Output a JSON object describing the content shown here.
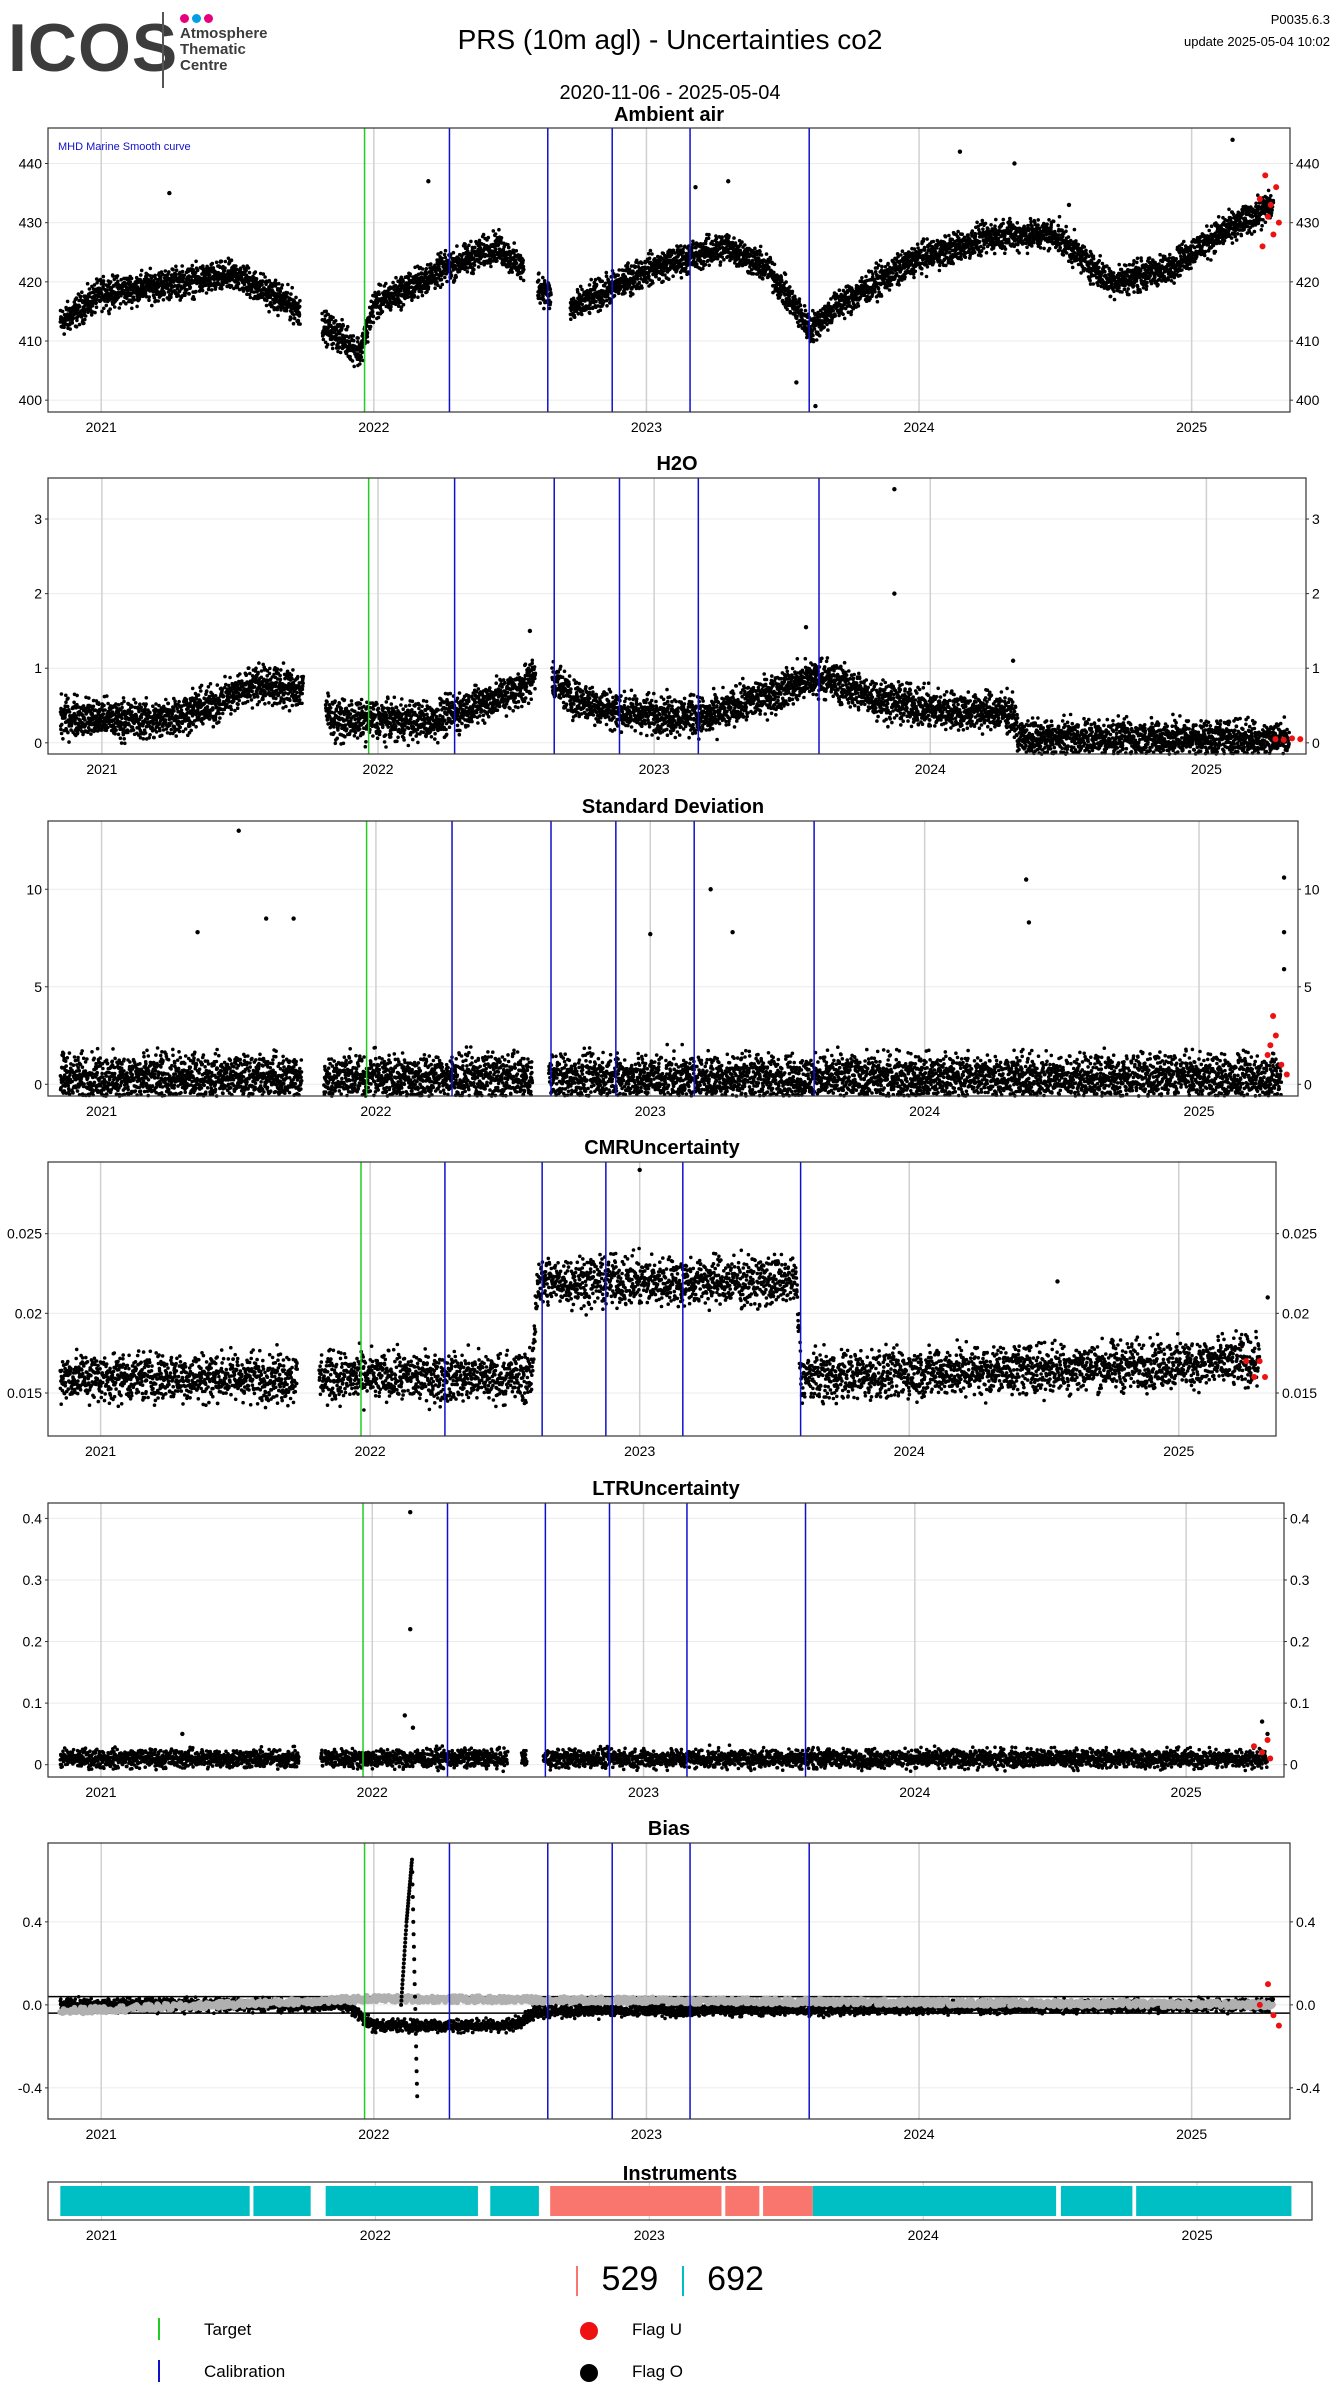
{
  "header": {
    "logo": "ICOS",
    "logo_sub": [
      "Atmosphere",
      "Thematic",
      "Centre"
    ],
    "title": "PRS  (10m agl) - Uncertainties co2",
    "date_range": "2020-11-06 - 2025-05-04",
    "version": "P0035.6.3",
    "update": "update  2025-05-04 10:02"
  },
  "colors": {
    "target": "#22cc22",
    "calibration": "#1010cc",
    "flag_u": "#ee1111",
    "flag_o": "#000000",
    "instrument_a": "#00bfc4",
    "instrument_b": "#f8766d",
    "bias_gray": "#b0b0b0",
    "bias_orange": "#f5a623"
  },
  "chart_data": [
    {
      "id": "ambient",
      "type": "scatter",
      "title": "Ambient air",
      "annotation": "MHD Marine Smooth curve",
      "xlim": [
        "2020-10-20",
        "2025-05-10"
      ],
      "ylim": [
        398,
        446
      ],
      "yticks": [
        400,
        410,
        420,
        430,
        440
      ],
      "xticks": [
        "2021",
        "2022",
        "2023",
        "2024",
        "2025"
      ],
      "target_lines": [
        "2021-12-18"
      ],
      "calibration_lines": [
        "2022-04-10",
        "2022-08-20",
        "2022-11-15",
        "2023-02-28",
        "2023-08-05"
      ],
      "trend": [
        [
          2020.85,
          413
        ],
        [
          2021.0,
          418
        ],
        [
          2021.3,
          420
        ],
        [
          2021.5,
          421
        ],
        [
          2021.7,
          416
        ],
        [
          2021.9,
          410
        ],
        [
          2021.95,
          408
        ],
        [
          2022.0,
          416
        ],
        [
          2022.25,
          422
        ],
        [
          2022.45,
          426
        ],
        [
          2022.55,
          422
        ],
        [
          2022.7,
          415
        ],
        [
          2022.75,
          416
        ],
        [
          2023.0,
          422
        ],
        [
          2023.3,
          426
        ],
        [
          2023.45,
          422
        ],
        [
          2023.6,
          412
        ],
        [
          2023.7,
          416
        ],
        [
          2024.0,
          424
        ],
        [
          2024.3,
          428
        ],
        [
          2024.5,
          428
        ],
        [
          2024.7,
          420
        ],
        [
          2024.9,
          422
        ],
        [
          2025.1,
          428
        ],
        [
          2025.3,
          433
        ]
      ],
      "gaps": [
        [
          2021.73,
          2021.81
        ],
        [
          2022.55,
          2022.6
        ],
        [
          2022.65,
          2022.72
        ]
      ],
      "spread": 2.5,
      "density": 4,
      "outliers": [
        [
          2021.25,
          435
        ],
        [
          2022.2,
          437
        ],
        [
          2023.18,
          436
        ],
        [
          2023.3,
          437
        ],
        [
          2023.62,
          399
        ],
        [
          2023.55,
          403
        ],
        [
          2024.15,
          442
        ],
        [
          2024.35,
          440
        ],
        [
          2025.15,
          444
        ],
        [
          2024.55,
          433
        ]
      ],
      "flag_u": [
        [
          2025.25,
          434
        ],
        [
          2025.28,
          431
        ],
        [
          2025.3,
          428
        ],
        [
          2025.27,
          438
        ],
        [
          2025.32,
          430
        ],
        [
          2025.26,
          426
        ],
        [
          2025.29,
          433
        ],
        [
          2025.31,
          436
        ]
      ]
    },
    {
      "id": "h2o",
      "type": "scatter",
      "title": "H2O",
      "xlim": [
        "2020-10-20",
        "2025-05-10"
      ],
      "ylim": [
        -0.15,
        3.55
      ],
      "yticks": [
        0,
        1,
        2,
        3
      ],
      "xticks": [
        "2021",
        "2022",
        "2023",
        "2024",
        "2025"
      ],
      "target_lines": [
        "2021-12-18"
      ],
      "calibration_lines": [
        "2022-04-10",
        "2022-08-20",
        "2022-11-15",
        "2023-02-28",
        "2023-08-05"
      ],
      "trend": [
        [
          2020.85,
          0.35
        ],
        [
          2021.2,
          0.3
        ],
        [
          2021.4,
          0.5
        ],
        [
          2021.55,
          0.8
        ],
        [
          2021.75,
          0.7
        ],
        [
          2021.85,
          0.3
        ],
        [
          2022.2,
          0.3
        ],
        [
          2022.5,
          0.7
        ],
        [
          2022.6,
          1.0
        ],
        [
          2022.7,
          0.6
        ],
        [
          2022.9,
          0.4
        ],
        [
          2023.2,
          0.35
        ],
        [
          2023.45,
          0.7
        ],
        [
          2023.6,
          0.9
        ],
        [
          2023.8,
          0.6
        ],
        [
          2024.0,
          0.45
        ],
        [
          2024.3,
          0.4
        ],
        [
          2024.32,
          0.05
        ],
        [
          2025.3,
          0.05
        ]
      ],
      "gaps": [
        [
          2021.73,
          2021.81
        ],
        [
          2022.57,
          2022.63
        ]
      ],
      "spread": 0.25,
      "density": 4,
      "outliers": [
        [
          2023.87,
          3.4
        ],
        [
          2023.87,
          2.0
        ],
        [
          2023.55,
          1.55
        ],
        [
          2022.55,
          1.5
        ],
        [
          2024.3,
          1.1
        ]
      ],
      "flag_u": [
        [
          2025.25,
          0.05
        ],
        [
          2025.28,
          0.04
        ],
        [
          2025.31,
          0.06
        ],
        [
          2025.34,
          0.05
        ]
      ]
    },
    {
      "id": "sd",
      "type": "scatter",
      "title": "Standard Deviation",
      "xlim": [
        "2020-10-20",
        "2025-05-10"
      ],
      "ylim": [
        -0.6,
        13.5
      ],
      "yticks": [
        0,
        5,
        10
      ],
      "xticks": [
        "2021",
        "2022",
        "2023",
        "2024",
        "2025"
      ],
      "target_lines": [
        "2021-12-18"
      ],
      "calibration_lines": [
        "2022-04-10",
        "2022-08-20",
        "2022-11-15",
        "2023-02-28",
        "2023-08-05"
      ],
      "trend": [
        [
          2020.85,
          0.3
        ],
        [
          2025.3,
          0.3
        ]
      ],
      "gaps": [
        [
          2021.73,
          2021.81
        ],
        [
          2022.57,
          2022.63
        ]
      ],
      "spread": 1.2,
      "density": 4,
      "outliers": [
        [
          2021.5,
          13
        ],
        [
          2021.6,
          8.5
        ],
        [
          2021.7,
          8.5
        ],
        [
          2021.35,
          7.8
        ],
        [
          2023.22,
          10
        ],
        [
          2023.0,
          7.7
        ],
        [
          2024.37,
          10.5
        ],
        [
          2024.38,
          8.3
        ],
        [
          2023.3,
          7.8
        ],
        [
          2025.31,
          10.6
        ],
        [
          2025.31,
          7.8
        ],
        [
          2025.31,
          5.9
        ]
      ],
      "flag_u": [
        [
          2025.25,
          1.5
        ],
        [
          2025.28,
          2.5
        ],
        [
          2025.3,
          1.0
        ],
        [
          2025.27,
          3.5
        ],
        [
          2025.32,
          0.5
        ],
        [
          2025.26,
          2.0
        ]
      ]
    },
    {
      "id": "cmr",
      "type": "scatter",
      "title": "CMRUncertainty",
      "xlim": [
        "2020-10-20",
        "2025-05-10"
      ],
      "ylim": [
        0.0123,
        0.0295
      ],
      "yticks": [
        0.015,
        0.02,
        0.025
      ],
      "xticks": [
        "2021",
        "2022",
        "2023",
        "2024",
        "2025"
      ],
      "target_lines": [
        "2021-12-18"
      ],
      "calibration_lines": [
        "2022-04-10",
        "2022-08-20",
        "2022-11-15",
        "2023-02-28",
        "2023-08-05"
      ],
      "trend": [
        [
          2020.85,
          0.016
        ],
        [
          2022.6,
          0.016
        ],
        [
          2022.62,
          0.022
        ],
        [
          2023.58,
          0.022
        ],
        [
          2023.6,
          0.016
        ],
        [
          2025.3,
          0.017
        ]
      ],
      "gaps": [
        [
          2021.73,
          2021.81
        ]
      ],
      "spread": 0.0015,
      "density": 3,
      "outliers": [
        [
          2023.0,
          0.029
        ],
        [
          2024.55,
          0.022
        ],
        [
          2025.33,
          0.021
        ]
      ],
      "flag_u": [
        [
          2025.25,
          0.017
        ],
        [
          2025.28,
          0.016
        ],
        [
          2025.3,
          0.017
        ],
        [
          2025.32,
          0.016
        ]
      ]
    },
    {
      "id": "ltr",
      "type": "scatter",
      "title": "LTRUncertainty",
      "xlim": [
        "2020-10-20",
        "2025-05-10"
      ],
      "ylim": [
        -0.02,
        0.425
      ],
      "yticks": [
        0.0,
        0.1,
        0.2,
        0.3,
        0.4
      ],
      "xticks": [
        "2021",
        "2022",
        "2023",
        "2024",
        "2025"
      ],
      "target_lines": [
        "2021-12-18"
      ],
      "calibration_lines": [
        "2022-04-10",
        "2022-08-20",
        "2022-11-15",
        "2023-02-28",
        "2023-08-05"
      ],
      "trend": [
        [
          2020.85,
          0.01
        ],
        [
          2025.3,
          0.01
        ]
      ],
      "gaps": [
        [
          2021.73,
          2021.81
        ],
        [
          2022.5,
          2022.55
        ],
        [
          2022.57,
          2022.63
        ]
      ],
      "spread": 0.015,
      "density": 3,
      "outliers": [
        [
          2022.14,
          0.41
        ],
        [
          2022.14,
          0.22
        ],
        [
          2022.12,
          0.08
        ],
        [
          2022.15,
          0.06
        ],
        [
          2021.3,
          0.05
        ],
        [
          2025.28,
          0.07
        ],
        [
          2025.3,
          0.05
        ]
      ],
      "flag_u": [
        [
          2025.25,
          0.03
        ],
        [
          2025.28,
          0.02
        ],
        [
          2025.31,
          0.01
        ],
        [
          2025.3,
          0.04
        ]
      ]
    },
    {
      "id": "bias",
      "type": "scatter",
      "title": "Bias",
      "xlim": [
        "2020-10-20",
        "2025-05-10"
      ],
      "ylim": [
        -0.55,
        0.78
      ],
      "yticks": [
        -0.4,
        0.0,
        0.4
      ],
      "ytick_labels": [
        "-0.4",
        "0.0",
        "0.4"
      ],
      "hlines": [
        0.04,
        -0.04
      ],
      "xticks": [
        "2021",
        "2022",
        "2023",
        "2024",
        "2025"
      ],
      "target_lines": [
        "2021-12-18"
      ],
      "calibration_lines": [
        "2022-04-10",
        "2022-08-20",
        "2022-11-15",
        "2023-02-28",
        "2023-08-05"
      ],
      "trend": [
        [
          2020.85,
          0.0
        ],
        [
          2021.9,
          0.0
        ],
        [
          2022.0,
          -0.1
        ],
        [
          2022.5,
          -0.1
        ],
        [
          2022.6,
          -0.03
        ],
        [
          2025.3,
          0.0
        ]
      ],
      "gray_trend": [
        [
          2020.85,
          -0.03
        ],
        [
          2022.0,
          0.03
        ],
        [
          2025.3,
          0.0
        ]
      ],
      "spike": [
        [
          2022.1,
          0.0
        ],
        [
          2022.12,
          0.4
        ],
        [
          2022.14,
          0.7
        ],
        [
          2022.16,
          -0.5
        ]
      ],
      "gaps": [],
      "spread": 0.03,
      "density": 3,
      "outliers": [],
      "flag_u": [
        [
          2025.25,
          0.0
        ],
        [
          2025.28,
          0.1
        ],
        [
          2025.3,
          -0.05
        ],
        [
          2025.32,
          -0.1
        ]
      ]
    }
  ],
  "instruments": {
    "title": "Instruments",
    "xticks": [
      "2021",
      "2022",
      "2023",
      "2024",
      "2025"
    ],
    "segments": [
      {
        "start": "2020-11-06",
        "end": "2021-07-15",
        "color": "instrument_a"
      },
      {
        "start": "2021-07-20",
        "end": "2021-10-05",
        "color": "instrument_a"
      },
      {
        "start": "2021-10-25",
        "end": "2022-05-15",
        "color": "instrument_a"
      },
      {
        "start": "2022-06-01",
        "end": "2022-08-05",
        "color": "instrument_a"
      },
      {
        "start": "2022-08-20",
        "end": "2023-04-05",
        "color": "instrument_b"
      },
      {
        "start": "2023-04-10",
        "end": "2023-05-25",
        "color": "instrument_b"
      },
      {
        "start": "2023-05-30",
        "end": "2023-08-05",
        "color": "instrument_b"
      },
      {
        "start": "2023-08-05",
        "end": "2024-06-25",
        "color": "instrument_a"
      },
      {
        "start": "2024-07-01",
        "end": "2024-10-05",
        "color": "instrument_a"
      },
      {
        "start": "2024-10-10",
        "end": "2025-05-04",
        "color": "instrument_a"
      }
    ],
    "counts": [
      {
        "value": "529",
        "color": "instrument_b"
      },
      {
        "value": "692",
        "color": "instrument_a"
      }
    ]
  },
  "legend": {
    "target": "Target",
    "calibration": "Calibration",
    "flag_u": "Flag U",
    "flag_o": "Flag O"
  }
}
